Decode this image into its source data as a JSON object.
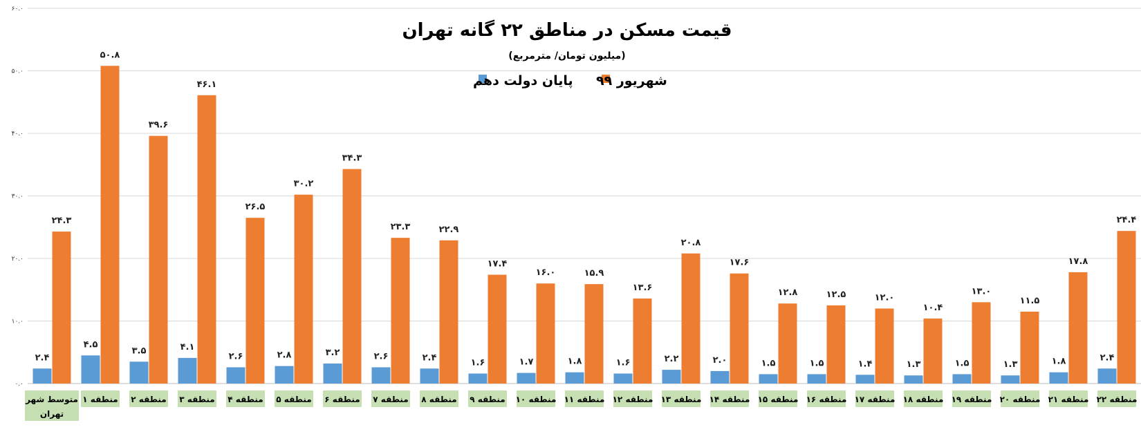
{
  "chart_data": {
    "type": "bar",
    "title": "قیمت مسکن در مناطق ۲۲ گانه تهران",
    "subtitle": "(میلیون تومان/ مترمربع)",
    "ylim": [
      0,
      60
    ],
    "yticks": [
      "۰.۰",
      "۱۰.۰",
      "۲۰.۰",
      "۳۰.۰",
      "۴۰.۰",
      "۵۰.۰",
      "۶۰.۰"
    ],
    "grid": true,
    "legend_position": "top",
    "categories": [
      [
        "متوسط شهر",
        "تهران"
      ],
      [
        "منطقه ۱"
      ],
      [
        "منطقه ۲"
      ],
      [
        "منطقه ۳"
      ],
      [
        "منطقه ۴"
      ],
      [
        "منطقه ۵"
      ],
      [
        "منطقه ۶"
      ],
      [
        "منطقه ۷"
      ],
      [
        "منطقه ۸"
      ],
      [
        "منطقه ۹"
      ],
      [
        "منطقه ۱۰"
      ],
      [
        "منطقه ۱۱"
      ],
      [
        "منطقه ۱۲"
      ],
      [
        "منطقه ۱۳"
      ],
      [
        "منطقه ۱۴"
      ],
      [
        "منطقه ۱۵"
      ],
      [
        "منطقه ۱۶"
      ],
      [
        "منطقه ۱۷"
      ],
      [
        "منطقه ۱۸"
      ],
      [
        "منطقه ۱۹"
      ],
      [
        "منطقه ۲۰"
      ],
      [
        "منطقه ۲۱"
      ],
      [
        "منطقه ۲۲"
      ]
    ],
    "series": [
      {
        "name": "پایان دولت دهم",
        "color": "#5b9bd5",
        "values": [
          2.4,
          4.5,
          3.5,
          4.1,
          2.6,
          2.8,
          3.2,
          2.6,
          2.4,
          1.6,
          1.7,
          1.8,
          1.6,
          2.2,
          2.0,
          1.5,
          1.5,
          1.4,
          1.3,
          1.5,
          1.3,
          1.8,
          2.4
        ],
        "labels": [
          "۲.۴",
          "۴.۵",
          "۳.۵",
          "۴.۱",
          "۲.۶",
          "۲.۸",
          "۳.۲",
          "۲.۶",
          "۲.۴",
          "۱.۶",
          "۱.۷",
          "۱.۸",
          "۱.۶",
          "۲.۲",
          "۲.۰",
          "۱.۵",
          "۱.۵",
          "۱.۴",
          "۱.۳",
          "۱.۵",
          "۱.۳",
          "۱.۸",
          "۲.۴"
        ]
      },
      {
        "name": "شهریور ۹۹",
        "color": "#ed7d31",
        "values": [
          24.3,
          50.8,
          39.6,
          46.1,
          26.5,
          30.2,
          34.3,
          23.3,
          22.9,
          17.4,
          16.0,
          15.9,
          13.6,
          20.8,
          17.6,
          12.8,
          12.5,
          12.0,
          10.4,
          13.0,
          11.5,
          17.8,
          24.4
        ],
        "labels": [
          "۲۴.۳",
          "۵۰.۸",
          "۳۹.۶",
          "۴۶.۱",
          "۲۶.۵",
          "۳۰.۲",
          "۳۴.۳",
          "۲۳.۳",
          "۲۲.۹",
          "۱۷.۴",
          "۱۶.۰",
          "۱۵.۹",
          "۱۳.۶",
          "۲۰.۸",
          "۱۷.۶",
          "۱۲.۸",
          "۱۲.۵",
          "۱۲.۰",
          "۱۰.۴",
          "۱۳.۰",
          "۱۱.۵",
          "۱۷.۸",
          "۲۴.۴"
        ]
      }
    ],
    "category_label_bg": "#c6e0b4"
  }
}
